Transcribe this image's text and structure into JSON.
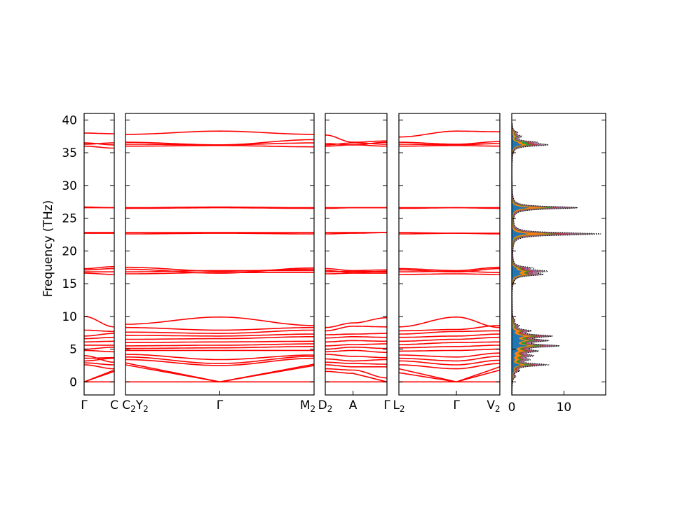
{
  "chart_data": {
    "type": "line",
    "ylabel": "Frequency (THz)",
    "ylim": [
      -2,
      41
    ],
    "yticks": [
      0,
      5,
      10,
      15,
      20,
      25,
      30,
      35,
      40
    ],
    "band_color": "#ff0000",
    "zero_line_color": "#00008b",
    "panels": [
      {
        "id": "gamma-c",
        "ticks": [
          {
            "pos": 0,
            "label": "Γ"
          },
          {
            "pos": 1,
            "label": "C"
          }
        ],
        "bands": [
          [
            0,
            0
          ],
          [
            0,
            1.6
          ],
          [
            0,
            1.8
          ],
          [
            2.6,
            2.0
          ],
          [
            2.9,
            2.6
          ],
          [
            3.2,
            3.6
          ],
          [
            3.6,
            3.7
          ],
          [
            4.0,
            3.0
          ],
          [
            4.8,
            4.6
          ],
          [
            5.0,
            5.3
          ],
          [
            5.6,
            5.6
          ],
          [
            6.1,
            6.2
          ],
          [
            6.6,
            6.8
          ],
          [
            7.0,
            7.4
          ],
          [
            7.9,
            7.7
          ],
          [
            10.0,
            8.4
          ],
          [
            16.6,
            16.4
          ],
          [
            16.8,
            16.8
          ],
          [
            17.1,
            17.3
          ],
          [
            17.3,
            17.6
          ],
          [
            22.7,
            22.7
          ],
          [
            22.8,
            22.8
          ],
          [
            26.6,
            26.6
          ],
          [
            26.7,
            26.6
          ],
          [
            36.0,
            35.7
          ],
          [
            36.3,
            36.5
          ],
          [
            36.5,
            36.2
          ],
          [
            38.0,
            37.9
          ]
        ]
      },
      {
        "id": "c2-gamma-m2",
        "ticks": [
          {
            "pos": 0,
            "label": "C2Y2"
          },
          {
            "pos": 0.5,
            "label": "Γ"
          },
          {
            "pos": 1,
            "label": "M2"
          }
        ],
        "bands": [
          [
            0,
            0,
            0
          ],
          [
            2.6,
            0,
            2.5
          ],
          [
            2.9,
            0,
            2.7
          ],
          [
            3.4,
            2.5,
            3.6
          ],
          [
            3.8,
            2.8,
            3.9
          ],
          [
            4.2,
            3.4,
            4.1
          ],
          [
            4.8,
            4.8,
            4.8
          ],
          [
            5.1,
            5.2,
            5.4
          ],
          [
            5.5,
            5.6,
            5.8
          ],
          [
            6.0,
            6.1,
            6.2
          ],
          [
            6.5,
            6.6,
            6.9
          ],
          [
            7.1,
            7.0,
            7.3
          ],
          [
            7.6,
            7.4,
            7.9
          ],
          [
            8.3,
            7.9,
            8.3
          ],
          [
            8.8,
            9.9,
            8.6
          ],
          [
            16.5,
            16.7,
            16.7
          ],
          [
            16.8,
            17.0,
            17.0
          ],
          [
            17.2,
            16.6,
            17.4
          ],
          [
            17.5,
            16.9,
            17.2
          ],
          [
            22.6,
            22.7,
            22.6
          ],
          [
            22.8,
            22.8,
            22.8
          ],
          [
            26.5,
            26.6,
            26.5
          ],
          [
            26.6,
            26.7,
            26.6
          ],
          [
            36.0,
            36.1,
            35.9
          ],
          [
            36.3,
            36.2,
            36.5
          ],
          [
            36.6,
            36.2,
            37.0
          ],
          [
            37.8,
            38.3,
            37.8
          ]
        ]
      },
      {
        "id": "d2-a-gamma",
        "ticks": [
          {
            "pos": 0,
            "label": "D2"
          },
          {
            "pos": 0.45,
            "label": "A"
          },
          {
            "pos": 1,
            "label": "Γ"
          }
        ],
        "bands": [
          [
            0,
            0,
            0
          ],
          [
            1.6,
            1.3,
            0
          ],
          [
            2.0,
            1.8,
            0.6
          ],
          [
            2.6,
            2.3,
            2.3
          ],
          [
            3.0,
            2.8,
            2.7
          ],
          [
            3.5,
            3.2,
            3.4
          ],
          [
            4.2,
            3.9,
            3.7
          ],
          [
            4.6,
            4.8,
            4.5
          ],
          [
            5.0,
            5.3,
            5.1
          ],
          [
            5.5,
            5.7,
            5.8
          ],
          [
            6.1,
            6.3,
            6.2
          ],
          [
            6.7,
            6.9,
            6.8
          ],
          [
            7.2,
            7.3,
            7.4
          ],
          [
            7.8,
            8.5,
            8.4
          ],
          [
            8.3,
            9.0,
            9.8
          ],
          [
            16.5,
            16.6,
            16.6
          ],
          [
            16.8,
            16.9,
            16.8
          ],
          [
            17.0,
            16.7,
            16.9
          ],
          [
            17.3,
            17.0,
            17.1
          ],
          [
            22.6,
            22.7,
            22.8
          ],
          [
            22.8,
            22.8,
            22.8
          ],
          [
            26.5,
            26.6,
            26.6
          ],
          [
            26.6,
            26.6,
            26.6
          ],
          [
            36.0,
            36.2,
            36.0
          ],
          [
            36.2,
            36.5,
            36.3
          ],
          [
            36.4,
            36.2,
            36.6
          ],
          [
            37.7,
            36.6,
            36.8
          ]
        ]
      },
      {
        "id": "l2-gamma-v2",
        "ticks": [
          {
            "pos": 0,
            "label": "L2"
          },
          {
            "pos": 0.57,
            "label": "Γ"
          },
          {
            "pos": 1,
            "label": "V2"
          }
        ],
        "bands": [
          [
            0,
            0,
            0
          ],
          [
            1.4,
            0,
            1.8
          ],
          [
            2.0,
            0,
            2.3
          ],
          [
            2.6,
            2.0,
            2.8
          ],
          [
            3.2,
            2.6,
            3.3
          ],
          [
            3.6,
            3.2,
            3.9
          ],
          [
            4.1,
            3.8,
            4.4
          ],
          [
            4.7,
            4.8,
            5.0
          ],
          [
            5.2,
            5.4,
            5.6
          ],
          [
            5.7,
            6.0,
            6.1
          ],
          [
            6.2,
            6.5,
            6.8
          ],
          [
            6.8,
            7.0,
            7.3
          ],
          [
            7.3,
            7.7,
            7.8
          ],
          [
            7.8,
            8.0,
            8.6
          ],
          [
            8.4,
            9.9,
            8.3
          ],
          [
            16.4,
            16.5,
            16.4
          ],
          [
            16.8,
            16.9,
            16.7
          ],
          [
            17.1,
            16.8,
            17.3
          ],
          [
            17.3,
            17.0,
            17.5
          ],
          [
            22.6,
            22.7,
            22.6
          ],
          [
            22.8,
            22.7,
            22.7
          ],
          [
            26.5,
            26.6,
            26.5
          ],
          [
            26.6,
            26.6,
            26.6
          ],
          [
            36.0,
            36.1,
            36.0
          ],
          [
            36.3,
            36.2,
            36.4
          ],
          [
            36.6,
            36.3,
            36.7
          ],
          [
            37.4,
            38.3,
            38.2
          ]
        ]
      }
    ],
    "dos": {
      "xlim": [
        0,
        18
      ],
      "xticks": [
        0,
        10
      ],
      "total_color": "#000000",
      "peaks": [
        {
          "f": 0.8,
          "h": 0.5
        },
        {
          "f": 1.7,
          "h": 1.0
        },
        {
          "f": 2.6,
          "h": 6.5
        },
        {
          "f": 3.4,
          "h": 2.5
        },
        {
          "f": 4.0,
          "h": 3.2
        },
        {
          "f": 4.7,
          "h": 4.0
        },
        {
          "f": 5.5,
          "h": 8.0
        },
        {
          "f": 6.3,
          "h": 5.5
        },
        {
          "f": 7.0,
          "h": 6.8
        },
        {
          "f": 7.8,
          "h": 3.0
        },
        {
          "f": 8.6,
          "h": 1.0
        },
        {
          "f": 9.4,
          "h": 0.4
        },
        {
          "f": 16.4,
          "h": 5.0
        },
        {
          "f": 16.9,
          "h": 5.6
        },
        {
          "f": 17.4,
          "h": 3.0
        },
        {
          "f": 22.6,
          "h": 17.0
        },
        {
          "f": 26.6,
          "h": 12.5
        },
        {
          "f": 36.2,
          "h": 6.2
        },
        {
          "f": 36.6,
          "h": 3.5
        },
        {
          "f": 37.5,
          "h": 1.5
        },
        {
          "f": 38.1,
          "h": 0.8
        }
      ],
      "partials": [
        {
          "color": "#1f77b4",
          "weight": 0.42
        },
        {
          "color": "#ff7f0e",
          "weight": 0.3
        },
        {
          "color": "#2ca02c",
          "weight": 0.22
        },
        {
          "color": "#d62728",
          "weight": 0.16
        },
        {
          "color": "#9467bd",
          "weight": 0.12
        },
        {
          "color": "#8c564b",
          "weight": 0.1
        },
        {
          "color": "#e377c2",
          "weight": 0.08
        },
        {
          "color": "#7f7f7f",
          "weight": 0.06
        }
      ]
    }
  }
}
